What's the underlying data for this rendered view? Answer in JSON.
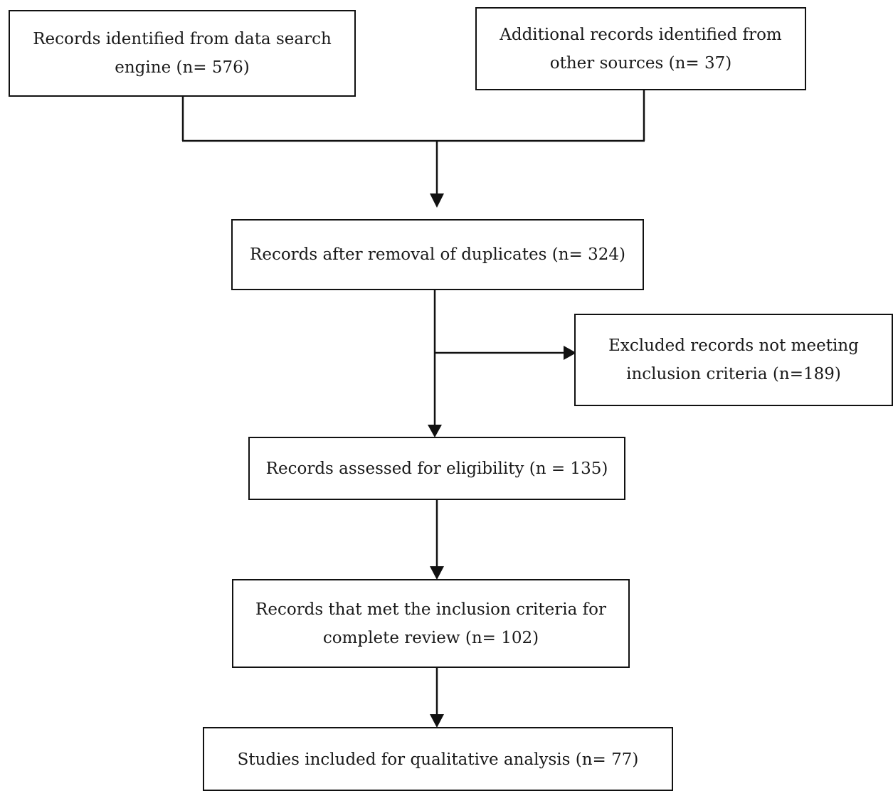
{
  "flow": {
    "search_engine": {
      "line1": "Records identified from data search",
      "line2": "engine (n= 576)"
    },
    "other_sources": {
      "line1": "Additional records identified from",
      "line2": "other sources (n= 37)"
    },
    "after_duplicates": {
      "line1": "Records after removal of duplicates (n= 324)"
    },
    "excluded": {
      "line1": "Excluded records not meeting",
      "line2": "inclusion criteria (n=189)"
    },
    "eligibility": {
      "line1": "Records assessed for eligibility (n = 135)"
    },
    "complete_review": {
      "line1": "Records that met the inclusion criteria for",
      "line2": "complete review (n= 102)"
    },
    "included": {
      "line1": "Studies included for qualitative analysis (n= 77)"
    }
  }
}
